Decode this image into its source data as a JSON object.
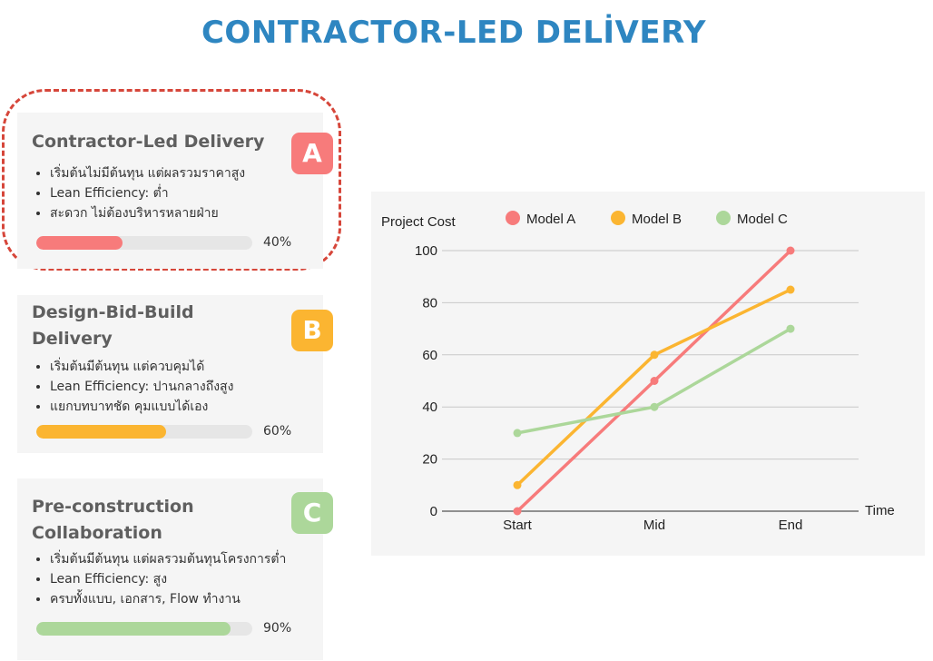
{
  "page_title": "CONTRACTOR-LED DELİVERY",
  "cards": [
    {
      "title": "Contractor-Led Delivery",
      "badge": "A",
      "bullets": [
        "เริ่มต้นไม่มีต้นทุน แต่ผลรวมราคาสูง",
        "Lean Efficiency: ต่ำ",
        "สะดวก ไม่ต้องบริหารหลายฝ่าย"
      ],
      "progress": 0.4,
      "progress_label": "40%",
      "color": "#f77b7b"
    },
    {
      "title": "Design-Bid-Build Delivery",
      "badge": "B",
      "bullets": [
        "เริ่มต้นมีต้นทุน แต่ควบคุมได้",
        "Lean Efficiency: ปานกลางถึงสูง",
        "แยกบทบาทชัด คุมแบบได้เอง"
      ],
      "progress": 0.6,
      "progress_label": "60%",
      "color": "#fbb531"
    },
    {
      "title": "Pre-construction Collaboration",
      "badge": "C",
      "bullets": [
        "เริ่มต้นมีต้นทุน แต่ผลรวมต้นทุนโครงการต่ำ",
        "Lean Efficiency: สูง",
        "ครบทั้งแบบ, เอกสาร, Flow ทำงาน"
      ],
      "progress": 0.9,
      "progress_label": "90%",
      "color": "#acd79a"
    }
  ],
  "chart_data": {
    "type": "line",
    "categories": [
      "Start",
      "Mid",
      "End"
    ],
    "series": [
      {
        "name": "Model A",
        "values": [
          0,
          50,
          100
        ],
        "color": "#f77b7b"
      },
      {
        "name": "Model B",
        "values": [
          10,
          60,
          85
        ],
        "color": "#fbb531"
      },
      {
        "name": "Model C",
        "values": [
          30,
          40,
          70
        ],
        "color": "#acd79a"
      }
    ],
    "ylabel": "Project Cost",
    "xlabel": "Time",
    "ylim": [
      0,
      100
    ],
    "yticks": [
      0,
      20,
      40,
      60,
      80,
      100
    ],
    "grid": true,
    "legend_position": "top"
  }
}
